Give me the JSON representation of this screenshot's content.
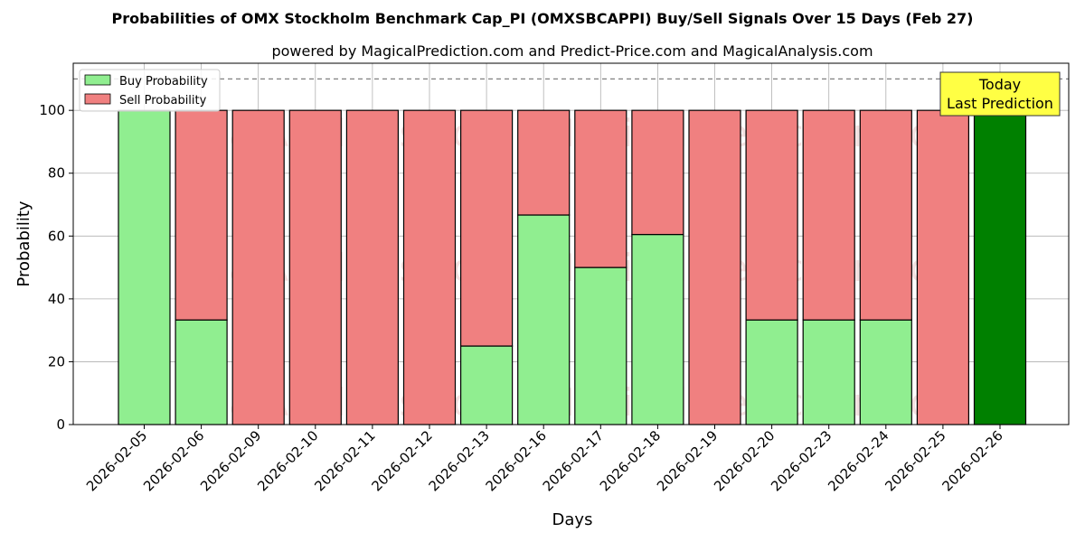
{
  "chart_data": {
    "type": "bar",
    "stacked": true,
    "title": "Probabilities of OMX Stockholm Benchmark Cap_PI (OMXSBCAPPI) Buy/Sell Signals Over 15 Days (Feb 27)",
    "subtitle": "powered by MagicalPrediction.com and Predict-Price.com and MagicalAnalysis.com",
    "xlabel": "Days",
    "ylabel": "Probability",
    "ylim": [
      0,
      115
    ],
    "yticks": [
      0,
      20,
      40,
      60,
      80,
      100
    ],
    "reference_line": 110,
    "grid": true,
    "legend_position": "top-left",
    "categories": [
      "2026-02-05",
      "2026-02-06",
      "2026-02-09",
      "2026-02-10",
      "2026-02-11",
      "2026-02-12",
      "2026-02-13",
      "2026-02-16",
      "2026-02-17",
      "2026-02-18",
      "2026-02-19",
      "2026-02-20",
      "2026-02-23",
      "2026-02-24",
      "2026-02-25",
      "2026-02-26"
    ],
    "series": [
      {
        "name": "Buy Probability",
        "color": "#90ee90",
        "values": [
          100,
          33.3,
          0,
          0,
          0,
          0,
          25,
          66.7,
          50,
          60.5,
          0,
          33.3,
          33.3,
          33.3,
          0,
          100
        ]
      },
      {
        "name": "Sell Probability",
        "color": "#f08080",
        "values": [
          0,
          66.7,
          100,
          100,
          100,
          100,
          75,
          33.3,
          50,
          39.5,
          100,
          66.7,
          66.7,
          66.7,
          100,
          0
        ]
      }
    ],
    "highlight": {
      "index": 15,
      "color": "#008000"
    },
    "annotation": {
      "line1": "Today",
      "line2": "Last Prediction",
      "color": "#ffff44"
    },
    "watermarks": [
      "MagicalAnalysis.com",
      "MagicalPrediction.com"
    ]
  }
}
